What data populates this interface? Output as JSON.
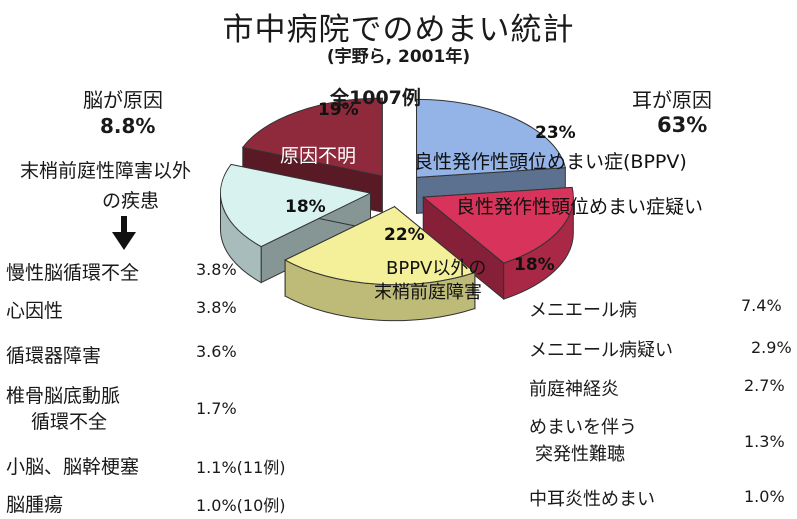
{
  "header": {
    "title": "市中病院でのめまい統計",
    "subtitle": "(宇野ら, 2001年)"
  },
  "chart_data": {
    "type": "pie",
    "total_label": "全1007例",
    "slices": [
      {
        "label": "良性発作性頭位めまい症(BPPV)",
        "pct_label": "23%",
        "value": 23,
        "color": "#94b4e8"
      },
      {
        "label": "良性発作性頭位めまい症疑い",
        "pct_label": "18%",
        "value": 18,
        "color": "#d8335a"
      },
      {
        "label": "BPPV以外の末梢前庭障害",
        "label_lines": [
          "BPPV以外の",
          "末梢前庭障害"
        ],
        "pct_label": "22%",
        "value": 22,
        "color": "#f4f09a"
      },
      {
        "label": "末梢前庭性障害以外の疾患",
        "pct_label": "18%",
        "value": 18,
        "color": "#d8f2f0"
      },
      {
        "label": "原因不明",
        "pct_label": "19%",
        "value": 19,
        "color": "#8f2a3c"
      }
    ]
  },
  "groups": {
    "brain": {
      "title": "脳が原因",
      "pct": "8.8%"
    },
    "ear": {
      "title": "耳が原因",
      "pct": "63%"
    },
    "central": {
      "title_line1": "末梢前庭性障害以外",
      "title_line2": "の疾患"
    }
  },
  "left_list": [
    {
      "label": "慢性脳循環不全",
      "value": "3.8%"
    },
    {
      "label": "心因性",
      "value": "3.8%"
    },
    {
      "label": "循環器障害",
      "value": "3.6%"
    },
    {
      "label_lines": [
        "椎骨脳底動脈",
        "循環不全"
      ],
      "value": "1.7%"
    },
    {
      "label": "小脳、脳幹梗塞",
      "value": "1.1%(11例)"
    },
    {
      "label": "脳腫瘍",
      "value": "1.0%(10例)"
    }
  ],
  "right_list": [
    {
      "label": "メニエール病",
      "value": "7.4%"
    },
    {
      "label": "メニエール病疑い",
      "value": "2.9%"
    },
    {
      "label": "前庭神経炎",
      "value": "2.7%"
    },
    {
      "label_lines": [
        "めまいを伴う",
        "突発性難聴"
      ],
      "value": "1.3%"
    },
    {
      "label": "中耳炎性めまい",
      "value": "1.0%"
    }
  ]
}
